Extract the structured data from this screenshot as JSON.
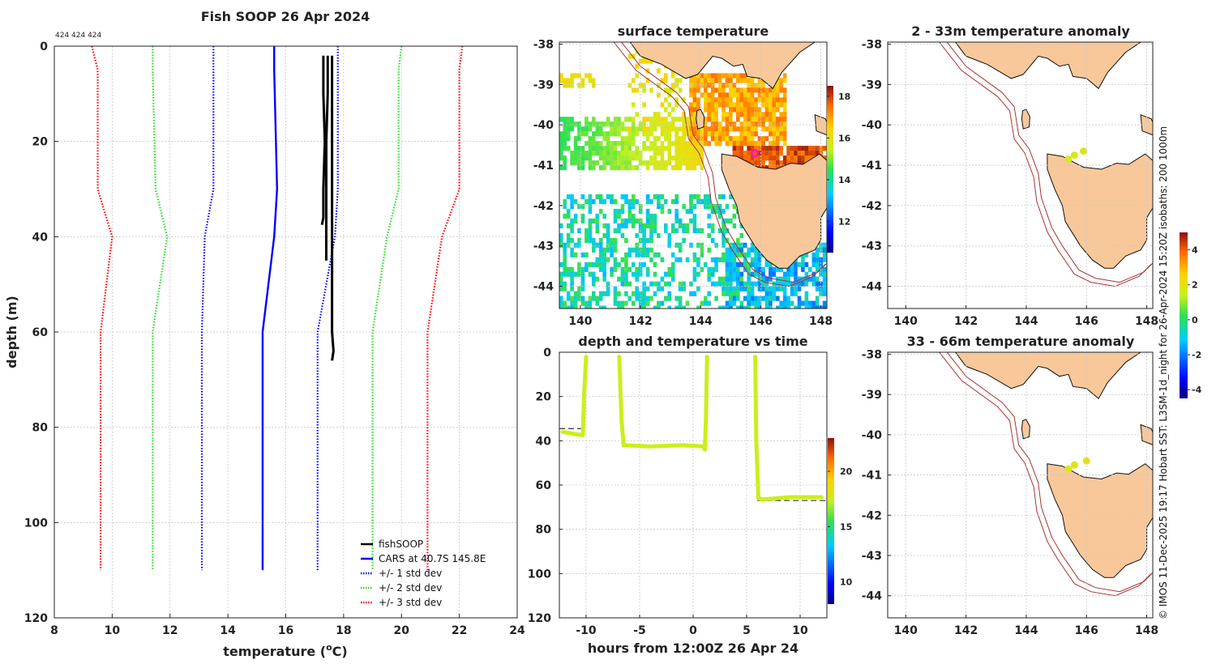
{
  "figure": {
    "main_title": "Fish SOOP 26 Apr 2024",
    "top_annotation": "424 424 424",
    "side_note": "© IMOS 11-Dec-2025 19:17 Hobart SST: L3SM-1d_night for 26-Apr-2024 15:20Z isobaths: 200  1000m"
  },
  "chart_data": [
    {
      "id": "profile",
      "type": "line",
      "title": "Fish SOOP 26 Apr 2024",
      "xlabel": "temperature (°C)",
      "xlabel_parts": [
        "temperature (",
        "o",
        "C)"
      ],
      "ylabel": "depth (m)",
      "xlim": [
        8,
        24
      ],
      "ylim": [
        0,
        120
      ],
      "y_reversed": true,
      "xticks": [
        "8",
        "10",
        "12",
        "14",
        "16",
        "18",
        "20",
        "22",
        "24"
      ],
      "yticks": [
        "0",
        "20",
        "40",
        "60",
        "80",
        "100",
        "120"
      ],
      "legend": [
        {
          "label": "fishSOOP",
          "color": "#000000",
          "style": "solid"
        },
        {
          "label": "CARS at 40.7S 145.8E",
          "color": "#0000ff",
          "style": "solid"
        },
        {
          "label": "+/- 1 std dev",
          "color": "#0000ff",
          "style": "dotted"
        },
        {
          "label": "+/- 2 std dev",
          "color": "#22dd22",
          "style": "dotted"
        },
        {
          "label": "+/- 3 std dev",
          "color": "#ff0000",
          "style": "dotted"
        }
      ],
      "cars_depth": [
        0,
        5,
        30,
        40,
        60,
        110
      ],
      "series": [
        {
          "name": "CARS at 40.7S 145.8E",
          "color": "#0000ff",
          "dash": false,
          "x": [
            15.6,
            15.6,
            15.7,
            15.6,
            15.2,
            15.2
          ]
        },
        {
          "name": "-1 std",
          "color": "#0000ff",
          "dash": true,
          "x": [
            13.5,
            13.5,
            13.5,
            13.2,
            13.1,
            13.1
          ]
        },
        {
          "name": "+1 std",
          "color": "#0000ff",
          "dash": true,
          "x": [
            17.8,
            17.8,
            17.8,
            17.7,
            17.1,
            17.1
          ]
        },
        {
          "name": "-2 std",
          "color": "#22dd22",
          "dash": true,
          "x": [
            11.4,
            11.4,
            11.5,
            11.9,
            11.4,
            11.4
          ]
        },
        {
          "name": "+2 std",
          "color": "#22dd22",
          "dash": true,
          "x": [
            20.0,
            19.9,
            19.9,
            19.5,
            19.0,
            19.0
          ]
        },
        {
          "name": "-3 std",
          "color": "#ff0000",
          "dash": true,
          "x": [
            9.3,
            9.5,
            9.5,
            10.0,
            9.6,
            9.6
          ]
        },
        {
          "name": "+3 std",
          "color": "#ff0000",
          "dash": true,
          "x": [
            22.1,
            22.0,
            22.0,
            21.4,
            20.9,
            20.9
          ]
        }
      ],
      "fish_casts": [
        {
          "name": "fishSOOP cast 1",
          "depth": [
            2,
            10,
            20,
            30,
            36,
            37.5
          ],
          "temp": [
            17.3,
            17.3,
            17.35,
            17.3,
            17.3,
            17.25
          ]
        },
        {
          "name": "fishSOOP cast 2",
          "depth": [
            2,
            10,
            20,
            30,
            40,
            45
          ],
          "temp": [
            17.45,
            17.45,
            17.4,
            17.4,
            17.4,
            17.4
          ]
        },
        {
          "name": "fishSOOP cast 3",
          "depth": [
            2,
            10,
            30,
            50,
            60,
            64,
            66
          ],
          "temp": [
            17.6,
            17.6,
            17.6,
            17.6,
            17.6,
            17.65,
            17.6
          ]
        }
      ]
    },
    {
      "id": "depth_time",
      "type": "scatter",
      "title": "depth and temperature vs time",
      "xlabel": "hours from 12:00Z 26 Apr 24",
      "ylabel": "",
      "xlim": [
        -12.5,
        12.5
      ],
      "ylim": [
        0,
        120
      ],
      "y_reversed": true,
      "xticks": [
        -10,
        -5,
        0,
        5,
        10
      ],
      "xtick_labels": [
        "-10",
        "-5",
        "0",
        "5",
        "10"
      ],
      "yticks": [
        "0",
        "20",
        "40",
        "60",
        "80",
        "100",
        "120"
      ],
      "colorbar": {
        "min": 8,
        "max": 23,
        "ticks": [
          "10",
          "15",
          "20"
        ],
        "tick_values": [
          10,
          15,
          20
        ]
      },
      "point_temperature": 17.5,
      "segments": [
        {
          "t": [
            -12.2,
            -11.0,
            -10.3,
            -10.2,
            -10.0
          ],
          "depth": [
            36,
            37,
            37.5,
            20,
            2
          ]
        },
        {
          "t": [
            -6.9,
            -6.7,
            -6.5,
            -4.0,
            -1.0,
            0.9,
            1.1,
            1.2,
            1.3
          ],
          "depth": [
            2,
            30,
            42,
            42.5,
            42,
            42.5,
            44,
            30,
            2
          ]
        },
        {
          "t": [
            5.8,
            5.9,
            6.1,
            6.5,
            9.0,
            12.0
          ],
          "depth": [
            2,
            40,
            66,
            66.5,
            65.5,
            65.5
          ]
        }
      ],
      "dashed_bottoms": [
        {
          "t": [
            -12.5,
            -10.2
          ],
          "depth": 34.5
        },
        {
          "t": [
            -6.6,
            1.3
          ],
          "depth": 42
        },
        {
          "t": [
            6.0,
            12.5
          ],
          "depth": 67
        }
      ]
    }
  ],
  "maps": [
    {
      "id": "sst",
      "title": "surface temperature",
      "xticks": [
        "140",
        "142",
        "144",
        "146",
        "148"
      ],
      "yticks": [
        "-38",
        "-39",
        "-40",
        "-41",
        "-42",
        "-43",
        "-44"
      ],
      "colorbar": {
        "min": 10.5,
        "max": 18.5,
        "ticks": [
          "12",
          "14",
          "16",
          "18"
        ],
        "tick_values": [
          12,
          14,
          16,
          18
        ]
      },
      "marker": {
        "lon": 145.8,
        "lat": -40.7
      }
    },
    {
      "id": "anom_2_33",
      "title": "2 - 33m temperature anomaly",
      "xticks": [
        "140",
        "142",
        "144",
        "146",
        "148"
      ],
      "yticks": [
        "-38",
        "-39",
        "-40",
        "-41",
        "-42",
        "-43",
        "-44"
      ],
      "points": [
        {
          "lon": 145.4,
          "lat": -40.85,
          "anomaly": 1.6
        },
        {
          "lon": 145.6,
          "lat": -40.75,
          "anomaly": 1.7
        },
        {
          "lon": 145.9,
          "lat": -40.65,
          "anomaly": 1.8
        }
      ]
    },
    {
      "id": "anom_33_66",
      "title": "33 - 66m temperature anomaly",
      "xticks": [
        "140",
        "142",
        "144",
        "146",
        "148"
      ],
      "yticks": [
        "-38",
        "-39",
        "-40",
        "-41",
        "-42",
        "-43",
        "-44"
      ],
      "points": [
        {
          "lon": 145.4,
          "lat": -40.85,
          "anomaly": 1.7
        },
        {
          "lon": 145.6,
          "lat": -40.75,
          "anomaly": 1.8
        },
        {
          "lon": 146.0,
          "lat": -40.65,
          "anomaly": 1.9
        }
      ]
    }
  ],
  "anomaly_colorbar": {
    "min": -4.5,
    "max": 5,
    "ticks": [
      "4",
      "2",
      "0",
      "-2",
      "-4"
    ],
    "tick_values": [
      4,
      2,
      0,
      -2,
      -4
    ]
  }
}
